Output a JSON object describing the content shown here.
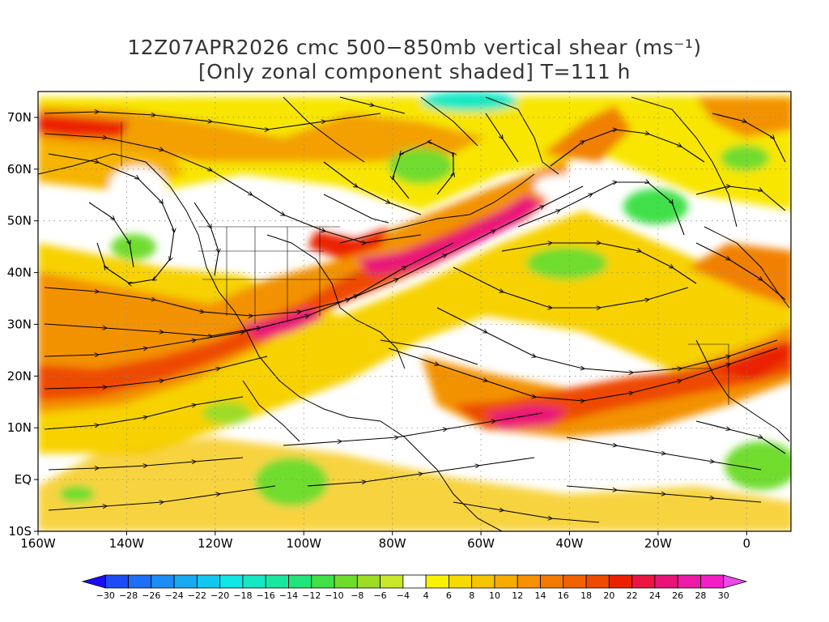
{
  "title": {
    "line1": "12Z07APR2026 cmc 500−850mb vertical shear (ms⁻¹)",
    "line2": "[Only zonal component shaded] T=111 h"
  },
  "map": {
    "lon_range": [
      -160,
      10
    ],
    "lat_range": [
      -10,
      75
    ],
    "lat_ticks": [
      {
        "v": 70,
        "label": "70N"
      },
      {
        "v": 60,
        "label": "60N"
      },
      {
        "v": 50,
        "label": "50N"
      },
      {
        "v": 40,
        "label": "40N"
      },
      {
        "v": 30,
        "label": "30N"
      },
      {
        "v": 20,
        "label": "20N"
      },
      {
        "v": 10,
        "label": "10N"
      },
      {
        "v": 0,
        "label": "EQ"
      },
      {
        "v": -10,
        "label": "10S"
      }
    ],
    "lon_ticks": [
      {
        "v": -160,
        "label": "160W"
      },
      {
        "v": -140,
        "label": "140W"
      },
      {
        "v": -120,
        "label": "120W"
      },
      {
        "v": -100,
        "label": "100W"
      },
      {
        "v": -80,
        "label": "80W"
      },
      {
        "v": -60,
        "label": "60W"
      },
      {
        "v": -40,
        "label": "40W"
      },
      {
        "v": -20,
        "label": "20W"
      },
      {
        "v": 0,
        "label": "0"
      }
    ],
    "gridlines": "dotted"
  },
  "colorbar": {
    "labels": [
      "-30",
      "-28",
      "-26",
      "-24",
      "-22",
      "-20",
      "-18",
      "-16",
      "-14",
      "-12",
      "-10",
      "-8",
      "-6",
      "-4",
      "4",
      "6",
      "8",
      "10",
      "12",
      "14",
      "16",
      "18",
      "20",
      "22",
      "24",
      "26",
      "28",
      "30"
    ],
    "colors": [
      "#1a0cf6",
      "#1d4cf6",
      "#1e6ef6",
      "#1e8cf6",
      "#19aaf2",
      "#13c8ee",
      "#12e6e6",
      "#16e8c3",
      "#18e89f",
      "#22e57a",
      "#3fe048",
      "#6fdc2d",
      "#9ddc26",
      "#c8e62a",
      "#ffffff",
      "#f8f200",
      "#f6da00",
      "#f6c400",
      "#f6ac00",
      "#f69200",
      "#f37a00",
      "#f16200",
      "#ee4a00",
      "#eb2200",
      "#ea1442",
      "#ea1478",
      "#ec1aa6",
      "#f21ec6",
      "#ea4ae6"
    ]
  }
}
